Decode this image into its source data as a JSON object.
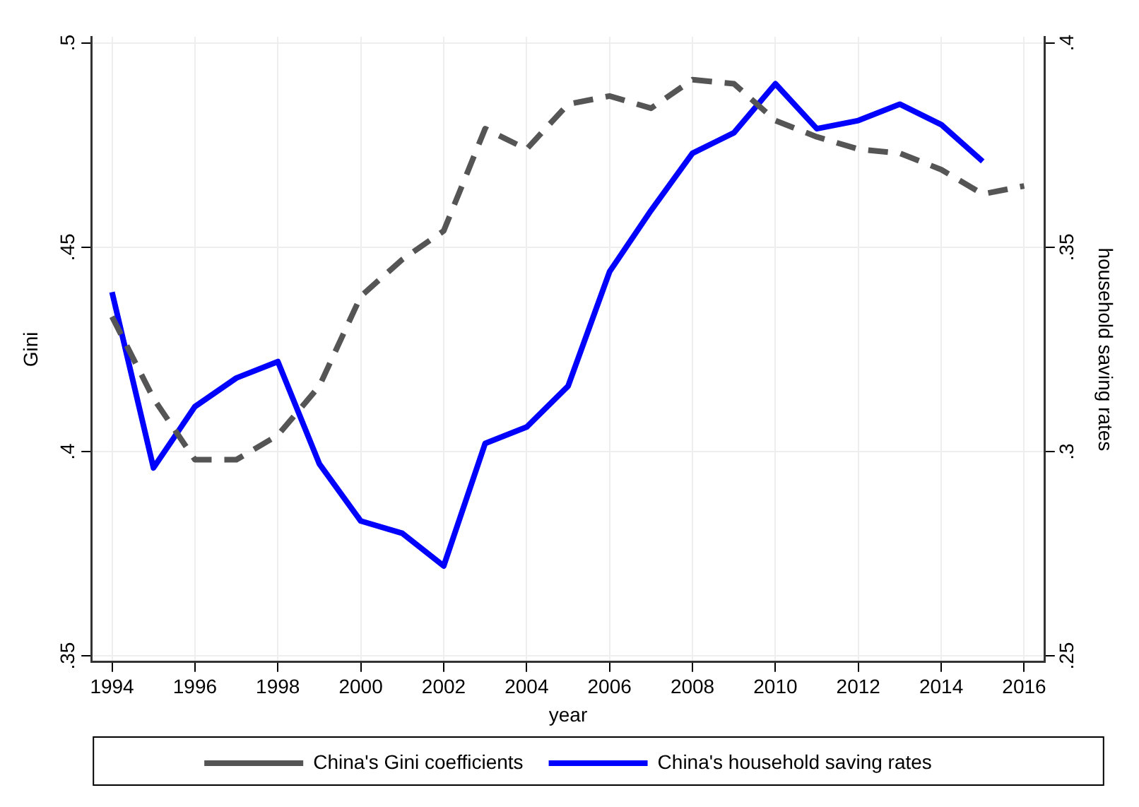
{
  "chart_data": {
    "type": "line",
    "xlabel": "year",
    "ylabel": "Gini",
    "y2label": "household saving rates",
    "x": [
      1994,
      1995,
      1996,
      1997,
      1998,
      1999,
      2000,
      2001,
      2002,
      2003,
      2004,
      2005,
      2006,
      2007,
      2008,
      2009,
      2010,
      2011,
      2012,
      2013,
      2014,
      2015,
      2016
    ],
    "series": [
      {
        "name": "China's Gini coefficients",
        "color": "#555555",
        "line_style": "dashed",
        "values": [
          0.433,
          0.413,
          0.398,
          0.398,
          0.404,
          0.416,
          0.438,
          0.447,
          0.454,
          0.479,
          0.474,
          0.485,
          0.487,
          0.484,
          0.491,
          0.49,
          0.481,
          0.477,
          0.474,
          0.473,
          0.469,
          0.463,
          0.465
        ]
      },
      {
        "name": "China's household saving rates",
        "color": "#0000ff",
        "line_style": "solid",
        "axis": "y2",
        "values": [
          0.339,
          0.296,
          0.311,
          0.318,
          0.322,
          0.297,
          0.283,
          0.28,
          0.272,
          0.302,
          0.306,
          0.316,
          0.344,
          0.359,
          0.373,
          0.378,
          0.39,
          0.379,
          0.381,
          0.385,
          0.38,
          0.371,
          null
        ]
      }
    ],
    "xlim": [
      1993.5,
      2016.5
    ],
    "xticks": [
      1994,
      1996,
      1998,
      2000,
      2002,
      2004,
      2006,
      2008,
      2010,
      2012,
      2014,
      2016
    ],
    "ylim": [
      0.3485,
      0.5015
    ],
    "yticks": [
      {
        "value": 0.35,
        "label": ".35"
      },
      {
        "value": 0.4,
        "label": ".4"
      },
      {
        "value": 0.45,
        "label": ".45"
      },
      {
        "value": 0.5,
        "label": ".5"
      }
    ],
    "y2lim": [
      0.2485,
      0.4015
    ],
    "y2ticks": [
      {
        "value": 0.25,
        "label": ".25"
      },
      {
        "value": 0.3,
        "label": ".3"
      },
      {
        "value": 0.35,
        "label": ".35"
      },
      {
        "value": 0.4,
        "label": ".4"
      }
    ],
    "grid": true,
    "legend": "bottom"
  }
}
